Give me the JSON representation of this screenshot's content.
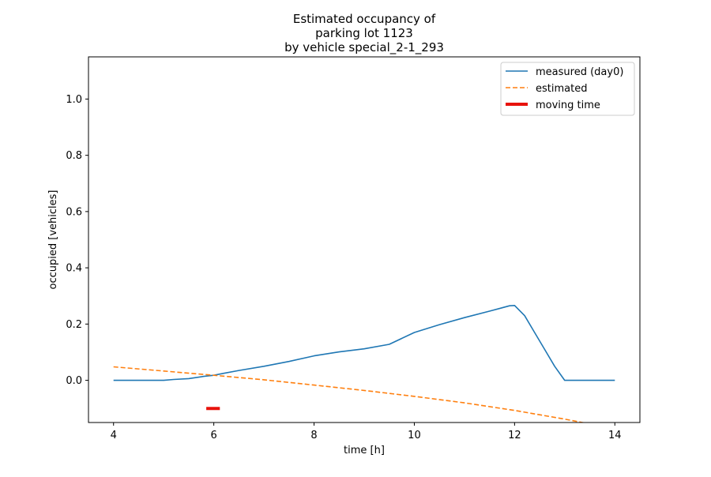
{
  "chart_data": {
    "type": "line",
    "title_lines": [
      "Estimated occupancy of",
      "parking lot 1123",
      "by vehicle special_2-1_293"
    ],
    "xlabel": "time [h]",
    "ylabel": "occupied [vehicles]",
    "xlim": [
      3.5,
      14.5
    ],
    "ylim": [
      -0.15,
      1.15
    ],
    "xticks": [
      4,
      6,
      8,
      10,
      12,
      14
    ],
    "yticks": [
      0.0,
      0.2,
      0.4,
      0.6,
      0.8,
      1.0
    ],
    "xtick_labels": [
      "4",
      "6",
      "8",
      "10",
      "12",
      "14"
    ],
    "ytick_labels": [
      "0.0",
      "0.2",
      "0.4",
      "0.6",
      "0.8",
      "1.0"
    ],
    "grid": false,
    "legend_position": "top-right",
    "series": [
      {
        "name": "measured (day0)",
        "style": "solid",
        "color": "#1f77b4",
        "x": [
          4.0,
          5.0,
          5.2,
          5.5,
          5.8,
          6.0,
          6.2,
          6.5,
          7.0,
          7.5,
          8.0,
          8.5,
          9.0,
          9.5,
          10.0,
          10.5,
          11.0,
          11.5,
          11.9,
          12.0,
          12.2,
          12.4,
          12.6,
          12.8,
          13.0,
          14.0
        ],
        "y": [
          0.0,
          0.0,
          0.003,
          0.006,
          0.014,
          0.018,
          0.025,
          0.035,
          0.05,
          0.067,
          0.087,
          0.101,
          0.112,
          0.128,
          0.17,
          0.198,
          0.223,
          0.246,
          0.265,
          0.266,
          0.23,
          0.17,
          0.11,
          0.05,
          0.0,
          0.0
        ]
      },
      {
        "name": "estimated",
        "style": "dashed",
        "color": "#ff7f0e",
        "x": [
          4.0,
          5.0,
          6.0,
          7.0,
          8.0,
          9.0,
          10.0,
          11.0,
          12.0,
          13.0,
          14.0
        ],
        "y": [
          0.048,
          0.033,
          0.018,
          0.002,
          -0.017,
          -0.036,
          -0.057,
          -0.08,
          -0.107,
          -0.138,
          -0.172
        ]
      },
      {
        "name": "moving time",
        "style": "thick",
        "color": "#e8120c",
        "x": [
          5.85,
          6.12
        ],
        "y": [
          -0.1,
          -0.1
        ]
      }
    ]
  }
}
